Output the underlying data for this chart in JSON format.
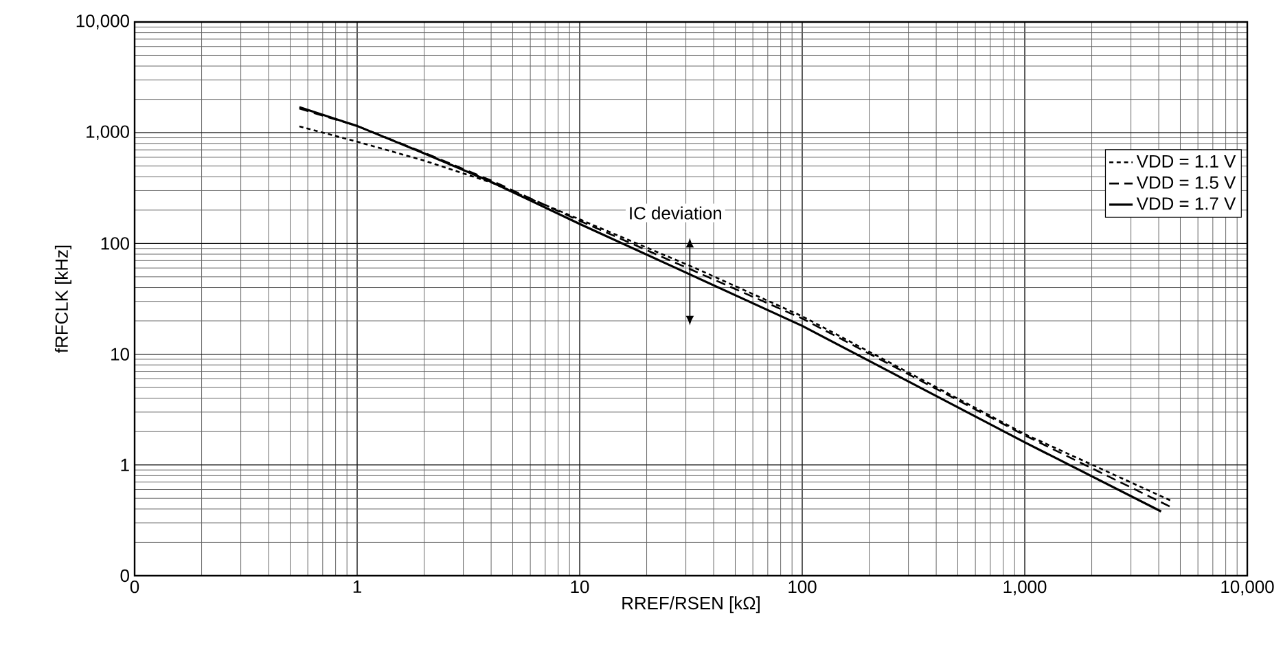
{
  "chart_data": {
    "type": "line",
    "xlabel": "RREF/RSEN [kΩ]",
    "ylabel": "fRFCLK [kHz]",
    "log": "xy",
    "grid": true,
    "legend": "top right",
    "xlim": [
      0.1,
      10000
    ],
    "ylim": [
      0.1,
      10000
    ],
    "xticks": [
      {
        "value": 0.1,
        "label": "0"
      },
      1,
      10,
      100,
      {
        "value": 1000,
        "label": "1,000"
      },
      {
        "value": 10000,
        "label": "10,000"
      }
    ],
    "yticks": [
      {
        "value": 0.1,
        "label": "0"
      },
      1,
      10,
      100,
      {
        "value": 1000,
        "label": "1,000"
      },
      {
        "value": 10000,
        "label": "10,000"
      }
    ],
    "annotations": [
      "IC deviation"
    ],
    "series": [
      {
        "name": "VDD = 1.1 V",
        "color": "#000000",
        "line_style": "dotted",
        "x": [
          0.55,
          1,
          2,
          4,
          10,
          33,
          100,
          1000,
          4600
        ],
        "values": [
          1140,
          830,
          560,
          355,
          165,
          60,
          22,
          1.9,
          0.47
        ]
      },
      {
        "name": "VDD = 1.5 V",
        "color": "#000000",
        "line_style": "dashed",
        "x": [
          0.55,
          1,
          2,
          4,
          10,
          33,
          100,
          1000,
          4500
        ],
        "values": [
          1650,
          1150,
          660,
          370,
          160,
          56,
          21,
          1.85,
          0.42
        ]
      },
      {
        "name": "VDD = 1.7 V",
        "color": "#000000",
        "line_style": "solid",
        "x": [
          0.55,
          1,
          2,
          4,
          10,
          33,
          100,
          1000,
          4100
        ],
        "values": [
          1700,
          1150,
          650,
          360,
          150,
          50,
          18,
          1.6,
          0.38
        ]
      }
    ]
  }
}
